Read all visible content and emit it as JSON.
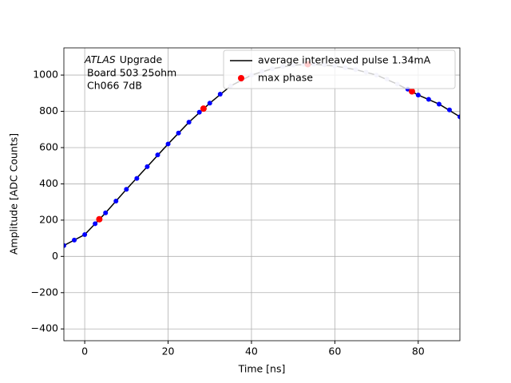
{
  "chart_data": {
    "type": "scatter",
    "xlabel": "Time [ns]",
    "ylabel": "Amplitude [ADC Counts]",
    "annotation": [
      "ATLAS",
      "Upgrade",
      "Board 503 25ohm",
      "Ch066 7dB"
    ],
    "xlim": [
      -5,
      90
    ],
    "ylim": [
      -465,
      1150
    ],
    "xticks": [
      0,
      20,
      40,
      60,
      80
    ],
    "yticks": [
      {
        "value": -400,
        "label": "−400"
      },
      {
        "value": -200,
        "label": "−200"
      },
      0,
      200,
      400,
      600,
      800,
      1000
    ],
    "grid": true,
    "legend": "upper right",
    "points": [
      {
        "color": "#0000ff",
        "x": [
          -5,
          -2.5,
          0,
          2.5,
          5,
          7.5,
          10,
          12.5,
          15,
          17.5,
          20,
          22.5,
          25,
          27.5,
          30,
          32.5,
          77.5,
          80,
          82.5,
          85,
          87.5,
          90
        ],
        "values": [
          60,
          90,
          120,
          180,
          240,
          305,
          370,
          430,
          495,
          560,
          620,
          680,
          740,
          795,
          845,
          895,
          922,
          890,
          866,
          840,
          808,
          770
        ]
      },
      {
        "color": "#c8c8f0",
        "x": [
          35,
          37.5,
          40,
          42.5,
          45,
          47.5,
          50,
          52.5,
          55,
          57.5,
          60,
          62.5,
          65,
          67.5,
          70,
          72.5,
          75
        ],
        "values": [
          940,
          972,
          1000,
          1020,
          1035,
          1047,
          1055,
          1059,
          1060,
          1056,
          1050,
          1041,
          1030,
          1016,
          1000,
          978,
          950
        ]
      }
    ],
    "series": [
      {
        "name": "average interleaved pulse 1.34mA",
        "color": "#000000",
        "style": "line",
        "x": [
          -5,
          0,
          5,
          10,
          15,
          20,
          25,
          30,
          35,
          40,
          45,
          50,
          55,
          60,
          65,
          70,
          75,
          80,
          85,
          90
        ],
        "values": [
          60,
          120,
          240,
          370,
          495,
          620,
          740,
          845,
          940,
          1000,
          1035,
          1055,
          1060,
          1050,
          1030,
          1000,
          950,
          890,
          840,
          770
        ]
      },
      {
        "name": "max phase",
        "color": "#ff0000",
        "style": "marker",
        "x": [
          3.5,
          28.5,
          53.5,
          78.5
        ],
        "values": [
          205,
          815,
          1060,
          910
        ]
      }
    ]
  }
}
